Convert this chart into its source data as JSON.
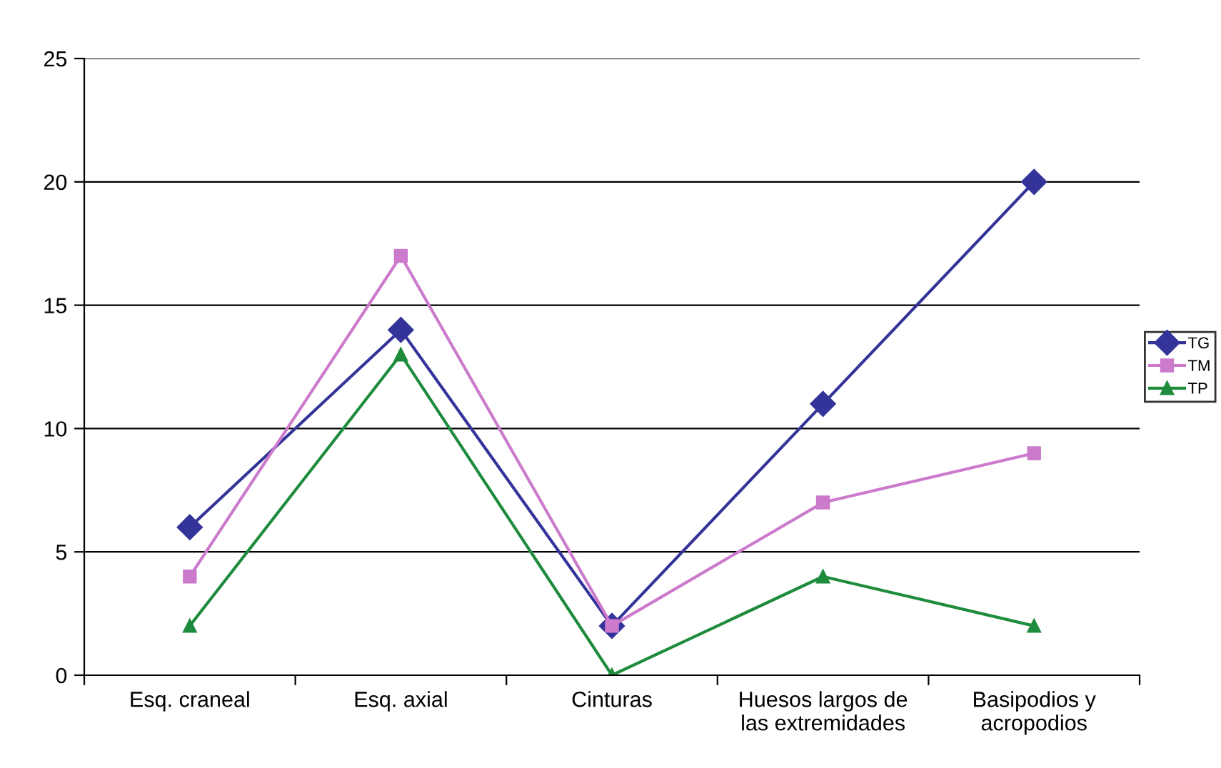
{
  "chart_data": {
    "type": "line",
    "categories": [
      "Esq. craneal",
      "Esq. axial",
      "Cinturas",
      "Huesos largos de\nlas extremidades",
      "Basipodios y\nacropodios"
    ],
    "series": [
      {
        "name": "TG",
        "color": "#333399",
        "marker": "diamond",
        "values": [
          6,
          14,
          2,
          11,
          20
        ]
      },
      {
        "name": "TM",
        "color": "#cc7acc",
        "marker": "square",
        "values": [
          4,
          17,
          2,
          7,
          9
        ]
      },
      {
        "name": "TP",
        "color": "#1e8c3c",
        "marker": "triangle",
        "values": [
          2,
          13,
          0,
          4,
          2
        ]
      }
    ],
    "ylim": [
      0,
      25
    ],
    "yticks": [
      0,
      5,
      10,
      15,
      20,
      25
    ],
    "grid": "y",
    "legend": "right",
    "line_style": "solid"
  }
}
